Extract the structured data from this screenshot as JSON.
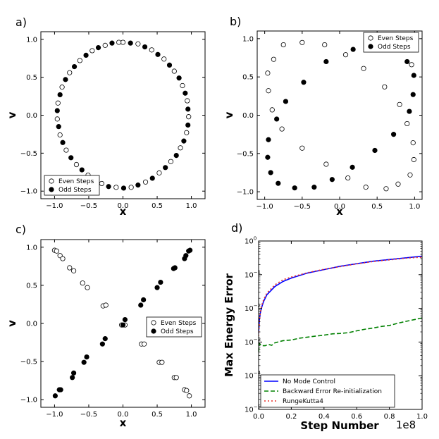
{
  "chart_data": [
    {
      "panel": "a)",
      "type": "scatter",
      "xlabel": "x",
      "ylabel": "v",
      "xlim": [
        -1.2,
        1.2
      ],
      "ylim": [
        -1.1,
        1.1
      ],
      "xticks": [
        -1.0,
        -0.5,
        0.0,
        0.5,
        1.0
      ],
      "yticks": [
        -1.0,
        -0.5,
        0.0,
        0.5,
        1.0
      ],
      "legend_position": "bottom-left",
      "series": [
        {
          "name": "Even Steps",
          "marker": "open-circle",
          "points": [
            [
              0.0,
              0.96
            ],
            [
              0.22,
              0.94
            ],
            [
              0.42,
              0.86
            ],
            [
              0.6,
              0.74
            ],
            [
              0.75,
              0.58
            ],
            [
              0.87,
              0.39
            ],
            [
              0.94,
              0.19
            ],
            [
              0.96,
              -0.02
            ],
            [
              0.93,
              -0.23
            ],
            [
              0.84,
              -0.43
            ],
            [
              0.7,
              -0.61
            ],
            [
              0.53,
              -0.76
            ],
            [
              0.33,
              -0.88
            ],
            [
              0.12,
              -0.95
            ],
            [
              -0.1,
              -0.95
            ],
            [
              -0.31,
              -0.9
            ],
            [
              -0.51,
              -0.79
            ],
            [
              -0.68,
              -0.65
            ],
            [
              -0.83,
              -0.46
            ],
            [
              -0.92,
              -0.26
            ],
            [
              -0.96,
              -0.05
            ],
            [
              -0.95,
              0.16
            ],
            [
              -0.89,
              0.37
            ],
            [
              -0.78,
              0.56
            ],
            [
              -0.63,
              0.72
            ],
            [
              -0.45,
              0.85
            ],
            [
              -0.26,
              0.92
            ],
            [
              -0.06,
              0.96
            ]
          ]
        },
        {
          "name": "Odd Steps",
          "marker": "filled-circle",
          "points": [
            [
              0.11,
              0.95
            ],
            [
              0.32,
              0.9
            ],
            [
              0.51,
              0.8
            ],
            [
              0.68,
              0.66
            ],
            [
              0.82,
              0.49
            ],
            [
              0.91,
              0.29
            ],
            [
              0.95,
              0.08
            ],
            [
              0.95,
              -0.13
            ],
            [
              0.89,
              -0.34
            ],
            [
              0.78,
              -0.53
            ],
            [
              0.62,
              -0.69
            ],
            [
              0.43,
              -0.83
            ],
            [
              0.22,
              -0.92
            ],
            [
              0.01,
              -0.96
            ],
            [
              -0.21,
              -0.94
            ],
            [
              -0.42,
              -0.85
            ],
            [
              -0.6,
              -0.72
            ],
            [
              -0.76,
              -0.56
            ],
            [
              -0.88,
              -0.36
            ],
            [
              -0.94,
              -0.15
            ],
            [
              -0.96,
              0.06
            ],
            [
              -0.92,
              0.27
            ],
            [
              -0.84,
              0.47
            ],
            [
              -0.71,
              0.64
            ],
            [
              -0.54,
              0.79
            ],
            [
              -0.36,
              0.89
            ],
            [
              -0.16,
              0.95
            ]
          ]
        }
      ]
    },
    {
      "panel": "b)",
      "type": "scatter",
      "xlabel": "x",
      "ylabel": "v",
      "xlim": [
        -1.1,
        1.1
      ],
      "ylim": [
        -1.1,
        1.1
      ],
      "xticks": [
        -1.0,
        -0.5,
        0.0,
        0.5,
        1.0
      ],
      "yticks": [
        -1.0,
        -0.5,
        0.0,
        0.5,
        1.0
      ],
      "legend_position": "top-right",
      "series": [
        {
          "name": "Even Steps",
          "marker": "open-circle",
          "points": [
            [
              -0.96,
              0.55
            ],
            [
              -0.95,
              0.32
            ],
            [
              -0.88,
              0.73
            ],
            [
              -0.9,
              0.07
            ],
            [
              -0.77,
              -0.18
            ],
            [
              -0.75,
              0.92
            ],
            [
              -0.5,
              0.95
            ],
            [
              -0.5,
              -0.43
            ],
            [
              -0.2,
              0.92
            ],
            [
              -0.18,
              -0.64
            ],
            [
              0.08,
              0.79
            ],
            [
              0.11,
              -0.82
            ],
            [
              0.32,
              0.61
            ],
            [
              0.35,
              -0.94
            ],
            [
              0.62,
              -0.96
            ],
            [
              0.6,
              0.37
            ],
            [
              0.78,
              -0.9
            ],
            [
              0.8,
              0.14
            ],
            [
              0.93,
              0.86
            ],
            [
              0.96,
              0.66
            ],
            [
              0.9,
              -0.11
            ],
            [
              0.98,
              -0.36
            ],
            [
              0.99,
              -0.58
            ],
            [
              0.94,
              -0.78
            ]
          ]
        },
        {
          "name": "Odd Steps",
          "marker": "filled-circle",
          "points": [
            [
              -0.95,
              -0.32
            ],
            [
              -0.96,
              -0.55
            ],
            [
              -0.92,
              -0.75
            ],
            [
              -0.84,
              -0.05
            ],
            [
              -0.82,
              -0.89
            ],
            [
              -0.72,
              0.18
            ],
            [
              -0.6,
              -0.95
            ],
            [
              -0.48,
              0.43
            ],
            [
              -0.34,
              -0.94
            ],
            [
              -0.18,
              0.7
            ],
            [
              -0.1,
              -0.84
            ],
            [
              0.18,
              0.86
            ],
            [
              0.17,
              -0.68
            ],
            [
              0.47,
              -0.46
            ],
            [
              0.72,
              -0.25
            ],
            [
              0.87,
              0.88
            ],
            [
              0.9,
              0.7
            ],
            [
              0.99,
              0.52
            ],
            [
              0.98,
              0.27
            ],
            [
              0.93,
              0.05
            ]
          ]
        }
      ]
    },
    {
      "panel": "c)",
      "type": "scatter",
      "xlabel": "x",
      "ylabel": "v",
      "xlim": [
        -1.2,
        1.2
      ],
      "ylim": [
        -1.1,
        1.1
      ],
      "xticks": [
        -1.0,
        -0.5,
        0.0,
        0.5,
        1.0
      ],
      "yticks": [
        -1.0,
        -0.5,
        0.0,
        0.5,
        1.0
      ],
      "legend_position": "center-right",
      "series": [
        {
          "name": "Even Steps",
          "marker": "open-circle",
          "points": [
            [
              -1.0,
              0.96
            ],
            [
              -0.97,
              0.95
            ],
            [
              -0.92,
              0.89
            ],
            [
              -0.88,
              0.85
            ],
            [
              -0.78,
              0.73
            ],
            [
              -0.72,
              0.69
            ],
            [
              -0.59,
              0.53
            ],
            [
              -0.52,
              0.47
            ],
            [
              -0.29,
              0.23
            ],
            [
              -0.25,
              0.24
            ],
            [
              -0.02,
              -0.02
            ],
            [
              0.03,
              -0.02
            ],
            [
              0.27,
              -0.27
            ],
            [
              0.31,
              -0.27
            ],
            [
              0.53,
              -0.51
            ],
            [
              0.57,
              -0.51
            ],
            [
              0.75,
              -0.71
            ],
            [
              0.78,
              -0.71
            ],
            [
              0.9,
              -0.87
            ],
            [
              0.93,
              -0.88
            ],
            [
              0.97,
              -0.95
            ]
          ]
        },
        {
          "name": "Odd Steps",
          "marker": "filled-circle",
          "points": [
            [
              -0.99,
              -0.95
            ],
            [
              -0.93,
              -0.87
            ],
            [
              -0.91,
              -0.87
            ],
            [
              -0.74,
              -0.71
            ],
            [
              -0.72,
              -0.65
            ],
            [
              -0.57,
              -0.51
            ],
            [
              -0.53,
              -0.44
            ],
            [
              -0.3,
              -0.27
            ],
            [
              -0.26,
              -0.2
            ],
            [
              0.0,
              -0.02
            ],
            [
              0.03,
              0.05
            ],
            [
              0.26,
              0.24
            ],
            [
              0.3,
              0.31
            ],
            [
              0.5,
              0.47
            ],
            [
              0.55,
              0.54
            ],
            [
              0.74,
              0.72
            ],
            [
              0.76,
              0.73
            ],
            [
              0.9,
              0.85
            ],
            [
              0.92,
              0.89
            ],
            [
              0.96,
              0.95
            ],
            [
              0.98,
              0.96
            ]
          ]
        }
      ]
    },
    {
      "panel": "d)",
      "type": "line",
      "xlabel": "Step Number",
      "ylabel": "Max Energy Error",
      "x_multiplier": "1e8",
      "xlim": [
        0.0,
        1.0
      ],
      "ylim_log10": [
        -5,
        0
      ],
      "yscale": "log",
      "xticks": [
        0.0,
        0.2,
        0.4,
        0.6,
        0.8,
        1.0
      ],
      "yticks_exp": [
        -5,
        -4,
        -3,
        -2,
        -1,
        0
      ],
      "legend_position": "bottom-left",
      "series": [
        {
          "name": "No Mode Control",
          "color": "#0000ff",
          "style": "solid",
          "x": [
            0.0,
            0.005,
            0.01,
            0.02,
            0.03,
            0.05,
            0.08,
            0.1,
            0.15,
            0.2,
            0.3,
            0.4,
            0.5,
            0.6,
            0.7,
            0.8,
            0.9,
            1.0
          ],
          "y": [
            0.0018,
            0.0045,
            0.0071,
            0.0112,
            0.0158,
            0.0251,
            0.0355,
            0.0447,
            0.0631,
            0.0794,
            0.1122,
            0.1413,
            0.1778,
            0.2113,
            0.2512,
            0.2818,
            0.3162,
            0.3548
          ]
        },
        {
          "name": "Backward Error Re-initialization",
          "color": "#008000",
          "style": "dashed",
          "x": [
            0.0,
            0.005,
            0.02,
            0.04,
            0.06,
            0.08,
            0.1,
            0.15,
            0.2,
            0.25,
            0.3,
            0.35,
            0.4,
            0.45,
            0.5,
            0.55,
            0.6,
            0.65,
            0.7,
            0.75,
            0.8,
            0.85,
            0.9,
            0.95,
            1.0
          ],
          "y": [
            0.0005,
            0.0009,
            0.00078,
            0.00078,
            0.00085,
            0.0008,
            0.00095,
            0.0011,
            0.00115,
            0.0013,
            0.0014,
            0.0015,
            0.0016,
            0.00175,
            0.0018,
            0.0019,
            0.00215,
            0.0024,
            0.0026,
            0.0029,
            0.0031,
            0.0036,
            0.0041,
            0.0046,
            0.0052
          ]
        },
        {
          "name": "RungeKutta4",
          "color": "#e8302a",
          "style": "dotted",
          "x": [
            0.0,
            0.005,
            0.01,
            0.02,
            0.03,
            0.05,
            0.08,
            0.1,
            0.15,
            0.2,
            0.3,
            0.4,
            0.5,
            0.6,
            0.7,
            0.8,
            0.9,
            1.0
          ],
          "y": [
            0.0015,
            0.004,
            0.0071,
            0.0126,
            0.0178,
            0.0282,
            0.0398,
            0.0501,
            0.0708,
            0.0851,
            0.1148,
            0.1445,
            0.1738,
            0.2089,
            0.2455,
            0.2754,
            0.309,
            0.3311
          ]
        }
      ]
    }
  ]
}
